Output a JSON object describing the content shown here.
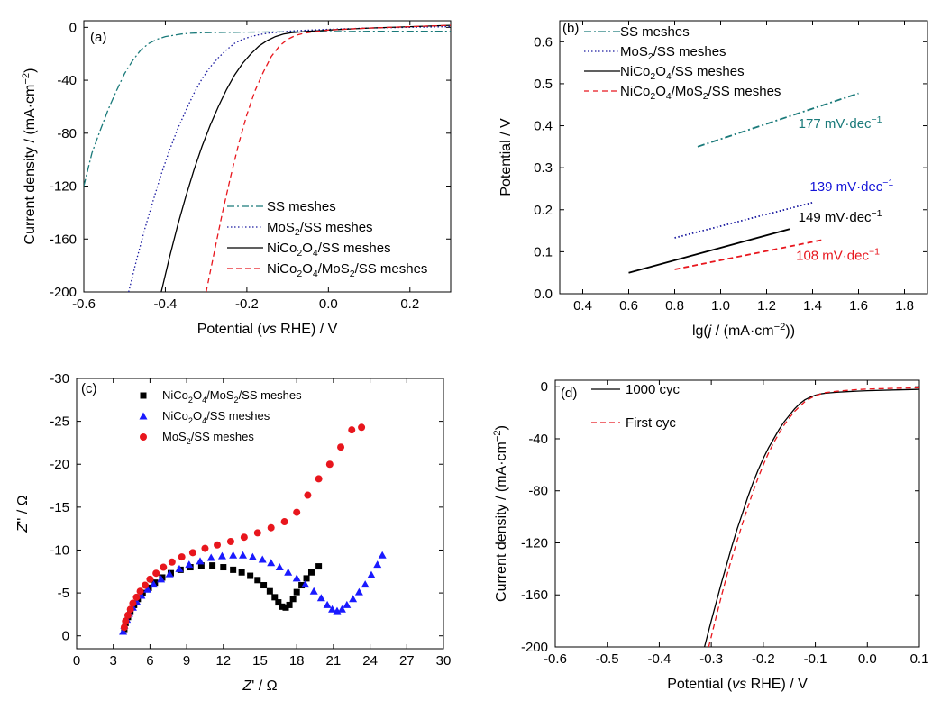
{
  "chart_data": [
    {
      "panel": "(a)",
      "type": "line",
      "xlabel": [
        "Potential (",
        "vs",
        " RHE) / V"
      ],
      "ylabel": [
        "Current density / (mA·cm",
        "−2",
        ")"
      ],
      "xlim": [
        -0.6,
        0.3
      ],
      "ylim": [
        -200,
        5
      ],
      "xticks": [
        -0.6,
        -0.4,
        -0.2,
        0.0,
        0.2
      ],
      "xtick_labels": [
        "-0.6",
        "-0.4",
        "-0.2",
        "0.0",
        "0.2"
      ],
      "yticks": [
        0,
        -40,
        -80,
        -120,
        -160,
        -200
      ],
      "ytick_labels": [
        "0",
        "-40",
        "-80",
        "-120",
        "-160",
        "-200"
      ],
      "legend_position": "bottom-right",
      "series": [
        {
          "name": [
            "SS meshes"
          ],
          "color": "#1a7a7a",
          "dash": "dashdot",
          "x": [
            -0.6,
            -0.58,
            -0.56,
            -0.54,
            -0.52,
            -0.5,
            -0.48,
            -0.46,
            -0.44,
            -0.42,
            -0.4,
            -0.38,
            -0.36,
            -0.34,
            -0.3,
            -0.25,
            -0.2,
            -0.1,
            0.0,
            0.1,
            0.2,
            0.3
          ],
          "y": [
            -120,
            -95,
            -78,
            -62,
            -48,
            -35,
            -25,
            -17,
            -12,
            -9,
            -7,
            -6,
            -5,
            -4.5,
            -4,
            -3.8,
            -3.6,
            -3.4,
            -3.2,
            -3,
            -3,
            -3
          ]
        },
        {
          "name": [
            "MoS",
            "2",
            "/SS meshes"
          ],
          "color": "#1a1aa0",
          "dash": "dotted",
          "x": [
            -0.49,
            -0.47,
            -0.45,
            -0.43,
            -0.41,
            -0.39,
            -0.37,
            -0.35,
            -0.33,
            -0.31,
            -0.29,
            -0.27,
            -0.25,
            -0.23,
            -0.21,
            -0.19,
            -0.17,
            -0.15,
            -0.12,
            -0.08,
            0.0,
            0.1,
            0.2,
            0.3
          ],
          "y": [
            -200,
            -175,
            -152,
            -131,
            -111,
            -93,
            -77,
            -63,
            -50,
            -39,
            -30,
            -23,
            -17,
            -12,
            -9,
            -7,
            -5.5,
            -4.5,
            -3.5,
            -2.5,
            -1.5,
            -0.5,
            0,
            0.5
          ]
        },
        {
          "name": [
            "NiCo",
            "2",
            "O",
            "4",
            "/SS meshes"
          ],
          "color": "#000000",
          "dash": "solid",
          "x": [
            -0.41,
            -0.39,
            -0.37,
            -0.35,
            -0.33,
            -0.31,
            -0.29,
            -0.27,
            -0.25,
            -0.23,
            -0.21,
            -0.19,
            -0.17,
            -0.15,
            -0.13,
            -0.11,
            -0.09,
            -0.07,
            -0.05,
            -0.02,
            0.0,
            0.1,
            0.2,
            0.3
          ],
          "y": [
            -200,
            -174,
            -150,
            -128,
            -108,
            -90,
            -74,
            -60,
            -47,
            -36,
            -27,
            -20,
            -14,
            -10,
            -7,
            -5,
            -4,
            -3.5,
            -3,
            -2.5,
            -2,
            -0.5,
            0.5,
            1.5
          ]
        },
        {
          "name": [
            "NiCo",
            "2",
            "O",
            "4",
            "/MoS",
            "2",
            "/SS meshes"
          ],
          "color": "#e8161d",
          "dash": "dashed",
          "x": [
            -0.3,
            -0.28,
            -0.26,
            -0.24,
            -0.22,
            -0.2,
            -0.18,
            -0.16,
            -0.14,
            -0.12,
            -0.1,
            -0.08,
            -0.06,
            -0.04,
            -0.02,
            0.0,
            0.1,
            0.2,
            0.3
          ],
          "y": [
            -200,
            -170,
            -140,
            -113,
            -88,
            -66,
            -48,
            -34,
            -22,
            -14,
            -9,
            -6,
            -4.5,
            -3.5,
            -2.8,
            -2,
            -0.5,
            0.5,
            1.5
          ]
        }
      ]
    },
    {
      "panel": "(b)",
      "type": "line",
      "xlabel": [
        "lg(",
        "j",
        " / (mA·cm",
        "−2",
        "))"
      ],
      "ylabel": [
        "Potential / V"
      ],
      "xlim": [
        0.3,
        1.9
      ],
      "ylim": [
        0.0,
        0.65
      ],
      "xticks": [
        0.4,
        0.6,
        0.8,
        1.0,
        1.2,
        1.4,
        1.6,
        1.8
      ],
      "xtick_labels": [
        "0.4",
        "0.6",
        "0.8",
        "1.0",
        "1.2",
        "1.4",
        "1.6",
        "1.8"
      ],
      "yticks": [
        0.0,
        0.1,
        0.2,
        0.3,
        0.4,
        0.5,
        0.6
      ],
      "ytick_labels": [
        "0.0",
        "0.1",
        "0.2",
        "0.3",
        "0.4",
        "0.5",
        "0.6"
      ],
      "legend_position": "top-left",
      "series": [
        {
          "name": [
            "SS meshes"
          ],
          "color": "#1a7a7a",
          "dash": "dashdot",
          "x": [
            0.9,
            1.6
          ],
          "y": [
            0.35,
            0.477
          ]
        },
        {
          "name": [
            "MoS",
            "2",
            "/SS meshes"
          ],
          "color": "#1a1aa0",
          "dash": "dotted",
          "x": [
            0.8,
            1.4
          ],
          "y": [
            0.133,
            0.217
          ]
        },
        {
          "name": [
            "NiCo",
            "2",
            "O",
            "4",
            "/SS meshes"
          ],
          "color": "#000000",
          "dash": "solid",
          "x": [
            0.6,
            1.3
          ],
          "y": [
            0.05,
            0.154
          ]
        },
        {
          "name": [
            "NiCo",
            "2",
            "O",
            "4",
            "/MoS",
            "2",
            "/SS meshes"
          ],
          "color": "#e8161d",
          "dash": "dashed",
          "x": [
            0.8,
            1.45
          ],
          "y": [
            0.058,
            0.129
          ]
        }
      ],
      "annotations": [
        {
          "text": "177 mV·dec",
          "sup": "−1",
          "color": "#1a7a7a",
          "x": 1.52,
          "y": 0.395
        },
        {
          "text": "139 mV·dec",
          "sup": "−1",
          "color": "#1414d8",
          "x": 1.57,
          "y": 0.245
        },
        {
          "text": "149 mV·dec",
          "sup": "−1",
          "color": "#000000",
          "x": 1.52,
          "y": 0.172
        },
        {
          "text": "108 mV·dec",
          "sup": "−1",
          "color": "#e8161d",
          "x": 1.51,
          "y": 0.08
        }
      ]
    },
    {
      "panel": "(c)",
      "type": "scatter",
      "xlabel": [
        "Z",
        "' / Ω"
      ],
      "ylabel": [
        "Z",
        "'' / Ω"
      ],
      "xlim": [
        0,
        30
      ],
      "ylim": [
        1.5,
        -30
      ],
      "xticks": [
        0,
        3,
        6,
        9,
        12,
        15,
        18,
        21,
        24,
        27,
        30
      ],
      "xtick_labels": [
        "0",
        "3",
        "6",
        "9",
        "12",
        "15",
        "18",
        "21",
        "24",
        "27",
        "30"
      ],
      "yticks": [
        0,
        -5,
        -10,
        -15,
        -20,
        -25,
        -30
      ],
      "ytick_labels": [
        "0",
        "-5",
        "-10",
        "-15",
        "-20",
        "-25",
        "-30"
      ],
      "legend_position": "top-left",
      "series": [
        {
          "name": [
            "NiCo",
            "2",
            "O",
            "4",
            "/MoS",
            "2",
            "/SS meshes"
          ],
          "color": "#000000",
          "marker": "square",
          "x": [
            3.9,
            4.0,
            4.2,
            4.4,
            4.7,
            5.0,
            5.4,
            5.9,
            6.4,
            7.0,
            7.7,
            8.5,
            9.3,
            10.2,
            11.1,
            12.0,
            12.8,
            13.5,
            14.2,
            14.8,
            15.3,
            15.8,
            16.2,
            16.5,
            16.8,
            17.1,
            17.4,
            17.7,
            18.0,
            18.4,
            18.8,
            19.2,
            19.8
          ],
          "y": [
            -0.8,
            -1.5,
            -2.2,
            -2.9,
            -3.6,
            -4.3,
            -5.0,
            -5.6,
            -6.2,
            -6.8,
            -7.3,
            -7.7,
            -8.0,
            -8.2,
            -8.2,
            -8.0,
            -7.7,
            -7.4,
            -7.0,
            -6.5,
            -5.9,
            -5.2,
            -4.5,
            -3.9,
            -3.4,
            -3.3,
            -3.6,
            -4.3,
            -5.1,
            -5.9,
            -6.7,
            -7.4,
            -8.1
          ]
        },
        {
          "name": [
            "NiCo",
            "2",
            "O",
            "4",
            "/SS meshes"
          ],
          "color": "#1a1aff",
          "marker": "triangle",
          "x": [
            3.8,
            3.9,
            4.1,
            4.3,
            4.6,
            4.9,
            5.3,
            5.8,
            6.3,
            6.9,
            7.6,
            8.4,
            9.2,
            10.1,
            11.0,
            11.9,
            12.8,
            13.6,
            14.4,
            15.2,
            15.9,
            16.6,
            17.3,
            18.0,
            18.7,
            19.4,
            20.0,
            20.5,
            20.9,
            21.3,
            21.7,
            22.1,
            22.6,
            23.1,
            23.6,
            24.1,
            24.6,
            25.0
          ],
          "y": [
            -0.5,
            -1.2,
            -1.9,
            -2.6,
            -3.3,
            -4.0,
            -4.7,
            -5.4,
            -6.0,
            -6.6,
            -7.2,
            -7.8,
            -8.3,
            -8.7,
            -9.1,
            -9.3,
            -9.4,
            -9.4,
            -9.2,
            -8.9,
            -8.5,
            -8.0,
            -7.4,
            -6.7,
            -6.0,
            -5.2,
            -4.4,
            -3.6,
            -3.1,
            -2.9,
            -3.1,
            -3.6,
            -4.3,
            -5.1,
            -6.0,
            -7.1,
            -8.3,
            -9.4
          ]
        },
        {
          "name": [
            "MoS",
            "2",
            "/SS meshes"
          ],
          "color": "#e8161d",
          "marker": "circle",
          "x": [
            3.9,
            4.0,
            4.2,
            4.4,
            4.6,
            4.9,
            5.2,
            5.6,
            6.0,
            6.5,
            7.1,
            7.8,
            8.6,
            9.5,
            10.5,
            11.5,
            12.6,
            13.7,
            14.8,
            15.9,
            17.0,
            18.0,
            18.9,
            19.8,
            20.7,
            21.6,
            22.5,
            23.3
          ],
          "y": [
            -1.0,
            -1.7,
            -2.4,
            -3.1,
            -3.8,
            -4.5,
            -5.2,
            -5.9,
            -6.6,
            -7.3,
            -8.0,
            -8.6,
            -9.2,
            -9.7,
            -10.2,
            -10.6,
            -11.0,
            -11.5,
            -12.0,
            -12.6,
            -13.3,
            -14.4,
            -16.4,
            -18.3,
            -20.0,
            -22.0,
            -24.0,
            -24.3
          ]
        }
      ]
    },
    {
      "panel": "(d)",
      "type": "line",
      "xlabel": [
        "Potential (",
        "vs",
        " RHE) / V"
      ],
      "ylabel": [
        "Current density / (mA·cm",
        "−2",
        ")"
      ],
      "xlim": [
        -0.6,
        0.1
      ],
      "ylim": [
        -200,
        5
      ],
      "xticks": [
        -0.6,
        -0.5,
        -0.4,
        -0.3,
        -0.2,
        -0.1,
        0.0,
        0.1
      ],
      "xtick_labels": [
        "-0.6",
        "-0.5",
        "-0.4",
        "-0.3",
        "-0.2",
        "-0.1",
        "0.0",
        "0.1"
      ],
      "yticks": [
        0,
        -40,
        -80,
        -120,
        -160,
        -200
      ],
      "ytick_labels": [
        "0",
        "-40",
        "-80",
        "-120",
        "-160",
        "-200"
      ],
      "legend_position": "top-left",
      "series": [
        {
          "name": [
            "1000 cyc"
          ],
          "color": "#000000",
          "dash": "solid",
          "x": [
            -0.313,
            -0.3,
            -0.29,
            -0.28,
            -0.27,
            -0.26,
            -0.25,
            -0.24,
            -0.23,
            -0.22,
            -0.21,
            -0.2,
            -0.19,
            -0.18,
            -0.17,
            -0.16,
            -0.15,
            -0.14,
            -0.13,
            -0.12,
            -0.11,
            -0.1,
            -0.09,
            -0.08,
            -0.06,
            -0.04,
            -0.02,
            0.0,
            0.05,
            0.1
          ],
          "y": [
            -200,
            -180,
            -165,
            -150,
            -136,
            -122,
            -109,
            -97,
            -85,
            -74,
            -64,
            -55,
            -47,
            -40,
            -33,
            -27,
            -22,
            -17,
            -13,
            -10,
            -8,
            -6.5,
            -5.5,
            -5,
            -4.3,
            -3.8,
            -3.4,
            -3,
            -2.5,
            -2
          ]
        },
        {
          "name": [
            "First cyc"
          ],
          "color": "#e8161d",
          "dash": "dashed",
          "x": [
            -0.305,
            -0.29,
            -0.28,
            -0.27,
            -0.26,
            -0.25,
            -0.24,
            -0.23,
            -0.22,
            -0.21,
            -0.2,
            -0.19,
            -0.18,
            -0.17,
            -0.16,
            -0.15,
            -0.14,
            -0.13,
            -0.12,
            -0.11,
            -0.1,
            -0.09,
            -0.08,
            -0.06,
            -0.04,
            -0.02,
            0.0,
            0.05,
            0.1
          ],
          "y": [
            -200,
            -176,
            -160,
            -145,
            -131,
            -118,
            -105,
            -93,
            -81,
            -70,
            -60,
            -51,
            -43,
            -36,
            -29.5,
            -24,
            -19,
            -15,
            -11.5,
            -9,
            -7,
            -5.5,
            -4.5,
            -3.5,
            -2.8,
            -2.2,
            -1.8,
            -1.2,
            -0.8
          ]
        }
      ]
    }
  ]
}
